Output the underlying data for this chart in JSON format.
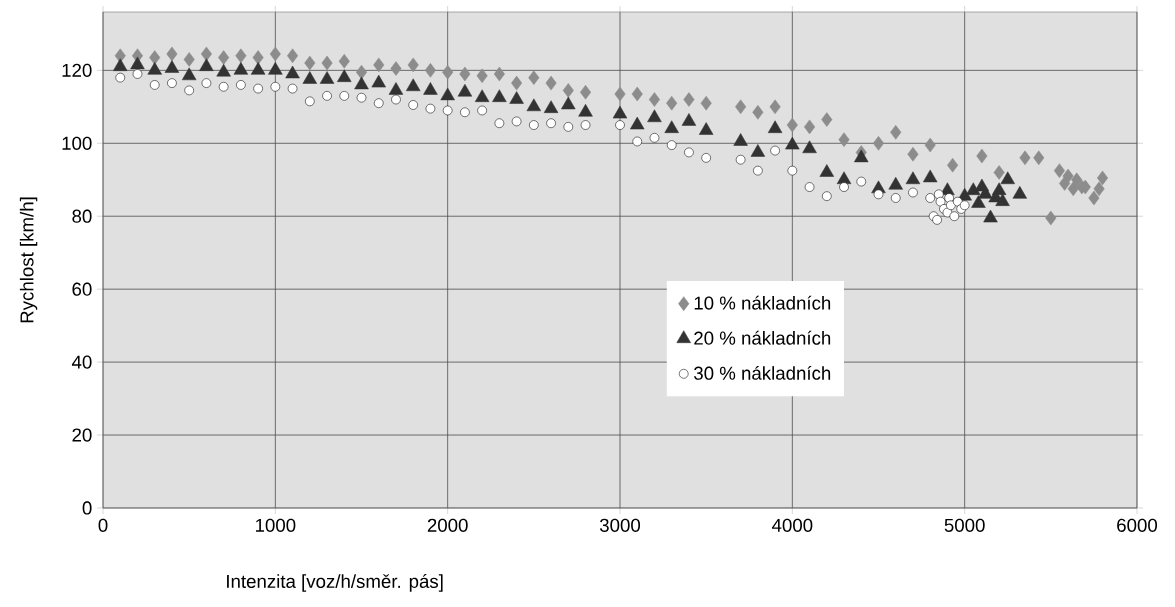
{
  "chart_data": {
    "type": "scatter",
    "xlabel": "Intenzita [voz/h/směr. pás]",
    "ylabel": "Rychlost [km/h]",
    "xlim": [
      0,
      6000
    ],
    "ylim": [
      0,
      136
    ],
    "xticks": [
      0,
      1000,
      2000,
      3000,
      4000,
      5000,
      6000
    ],
    "yticks": [
      0,
      20,
      40,
      60,
      80,
      100,
      120
    ],
    "grid": true,
    "legend": "right",
    "series": [
      {
        "name": "10 % nákladních",
        "color": "#8c8c8c",
        "marker": "diamond",
        "x": [
          100,
          200,
          300,
          400,
          500,
          600,
          700,
          800,
          900,
          1000,
          1100,
          1200,
          1300,
          1400,
          1500,
          1600,
          1700,
          1800,
          1900,
          2000,
          2100,
          2200,
          2300,
          2400,
          2500,
          2600,
          2700,
          2800,
          3000,
          3100,
          3200,
          3300,
          3400,
          3500,
          3700,
          3800,
          3900,
          4000,
          4100,
          4200,
          4300,
          4400,
          4500,
          4600,
          4700,
          4800,
          4930,
          5100,
          5200,
          5350,
          5430,
          5500,
          5550,
          5580,
          5600,
          5630,
          5650,
          5680,
          5700,
          5750,
          5780,
          5800
        ],
        "values": [
          124,
          124,
          123.5,
          124.5,
          123,
          124.5,
          123.5,
          124,
          123.5,
          124.5,
          124,
          122,
          122,
          122.5,
          119.5,
          121.5,
          120.5,
          121.5,
          120,
          119.5,
          119,
          118.5,
          119,
          116.5,
          118,
          116.5,
          114.5,
          114,
          113.5,
          113.5,
          112,
          111,
          112,
          111,
          110,
          108.5,
          110,
          105,
          104.5,
          106.5,
          101,
          97.5,
          100,
          103,
          97,
          99.5,
          94,
          96.5,
          92,
          96,
          96,
          79.5,
          92.5,
          89,
          91,
          87.5,
          90,
          88,
          88,
          85,
          87.5,
          90.5
        ]
      },
      {
        "name": "20 % nákladních",
        "color": "#333333",
        "marker": "triangle",
        "x": [
          100,
          200,
          300,
          400,
          500,
          600,
          700,
          800,
          900,
          1000,
          1100,
          1200,
          1300,
          1400,
          1500,
          1600,
          1700,
          1800,
          1900,
          2000,
          2100,
          2200,
          2300,
          2400,
          2500,
          2600,
          2700,
          2800,
          3000,
          3100,
          3200,
          3300,
          3400,
          3500,
          3700,
          3800,
          3900,
          4000,
          4100,
          4200,
          4300,
          4400,
          4500,
          4600,
          4700,
          4800,
          4900,
          5000,
          5050,
          5080,
          5100,
          5120,
          5150,
          5180,
          5200,
          5220,
          5250,
          5320
        ],
        "values": [
          121,
          121.5,
          120,
          120.5,
          118.5,
          121,
          119.5,
          120,
          120,
          120,
          119,
          117.5,
          117.5,
          118,
          116,
          116.5,
          114.5,
          115.5,
          114.5,
          113,
          114,
          112.5,
          112.5,
          112,
          110,
          109.5,
          110.5,
          108.5,
          108,
          105,
          107,
          104,
          106,
          103.5,
          100.5,
          97.5,
          104,
          99.5,
          98.5,
          92,
          90,
          96,
          87.5,
          88.5,
          90,
          90.5,
          87,
          85.5,
          87,
          83.5,
          88,
          86,
          79.5,
          85,
          87,
          84,
          90,
          86
        ]
      },
      {
        "name": "30 % nákladních",
        "color": "#ffffff",
        "marker": "circle",
        "x": [
          100,
          200,
          300,
          400,
          500,
          600,
          700,
          800,
          900,
          1000,
          1100,
          1200,
          1300,
          1400,
          1500,
          1600,
          1700,
          1800,
          1900,
          2000,
          2100,
          2200,
          2300,
          2400,
          2500,
          2600,
          2700,
          2800,
          3000,
          3100,
          3200,
          3300,
          3400,
          3500,
          3700,
          3800,
          3900,
          4000,
          4100,
          4200,
          4300,
          4400,
          4500,
          4600,
          4700,
          4800,
          4820,
          4840,
          4850,
          4860,
          4880,
          4900,
          4910,
          4920,
          4940,
          4960,
          4980,
          5000
        ],
        "values": [
          118,
          119,
          116,
          116.5,
          114.5,
          116.5,
          115.5,
          116,
          115,
          115.5,
          115,
          111.5,
          113,
          113,
          112.5,
          111,
          112,
          110.5,
          109.5,
          109,
          108.5,
          109,
          105.5,
          106,
          105,
          105.5,
          104.5,
          105,
          105,
          100.5,
          101.5,
          99.5,
          97.5,
          96,
          95.5,
          92.5,
          98,
          92.5,
          88,
          85.5,
          88,
          89.5,
          86,
          85,
          86.5,
          85,
          80,
          79,
          86,
          84,
          82,
          81,
          85,
          83,
          80,
          84,
          82,
          83
        ]
      }
    ]
  }
}
